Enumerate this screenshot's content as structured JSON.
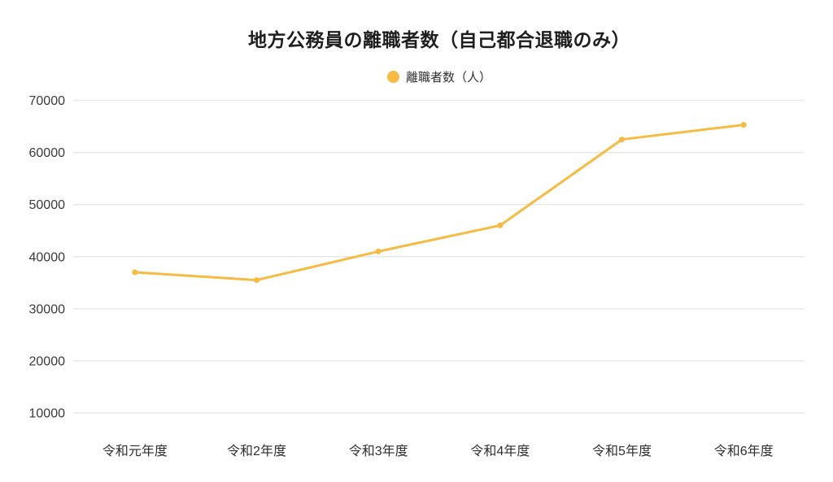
{
  "page": {
    "background": "#ffffff"
  },
  "chart_data": {
    "type": "line",
    "title": "地方公務員の離職者数（自己都合退職のみ）",
    "legend": {
      "position": "top",
      "items": [
        {
          "label": "離職者数（人）",
          "color": "#F7BA42"
        }
      ]
    },
    "categories": [
      "令和元年度",
      "令和2年度",
      "令和3年度",
      "令和4年度",
      "令和5年度",
      "令和6年度"
    ],
    "series": [
      {
        "name": "離職者数（人）",
        "color": "#F7BA42",
        "values": [
          37000,
          35500,
          41000,
          46000,
          62500,
          65300
        ]
      }
    ],
    "xlabel": "",
    "ylabel": "",
    "ylim": [
      10000,
      70000
    ],
    "yticks": [
      70000,
      60000,
      50000,
      40000,
      30000,
      20000,
      10000
    ],
    "grid": "horizontal-only",
    "axis_lines": "none",
    "colors": {
      "grid": "#e8e8e8",
      "title_text": "#1e1e1e",
      "axis_text": "#3a3a3a"
    }
  }
}
